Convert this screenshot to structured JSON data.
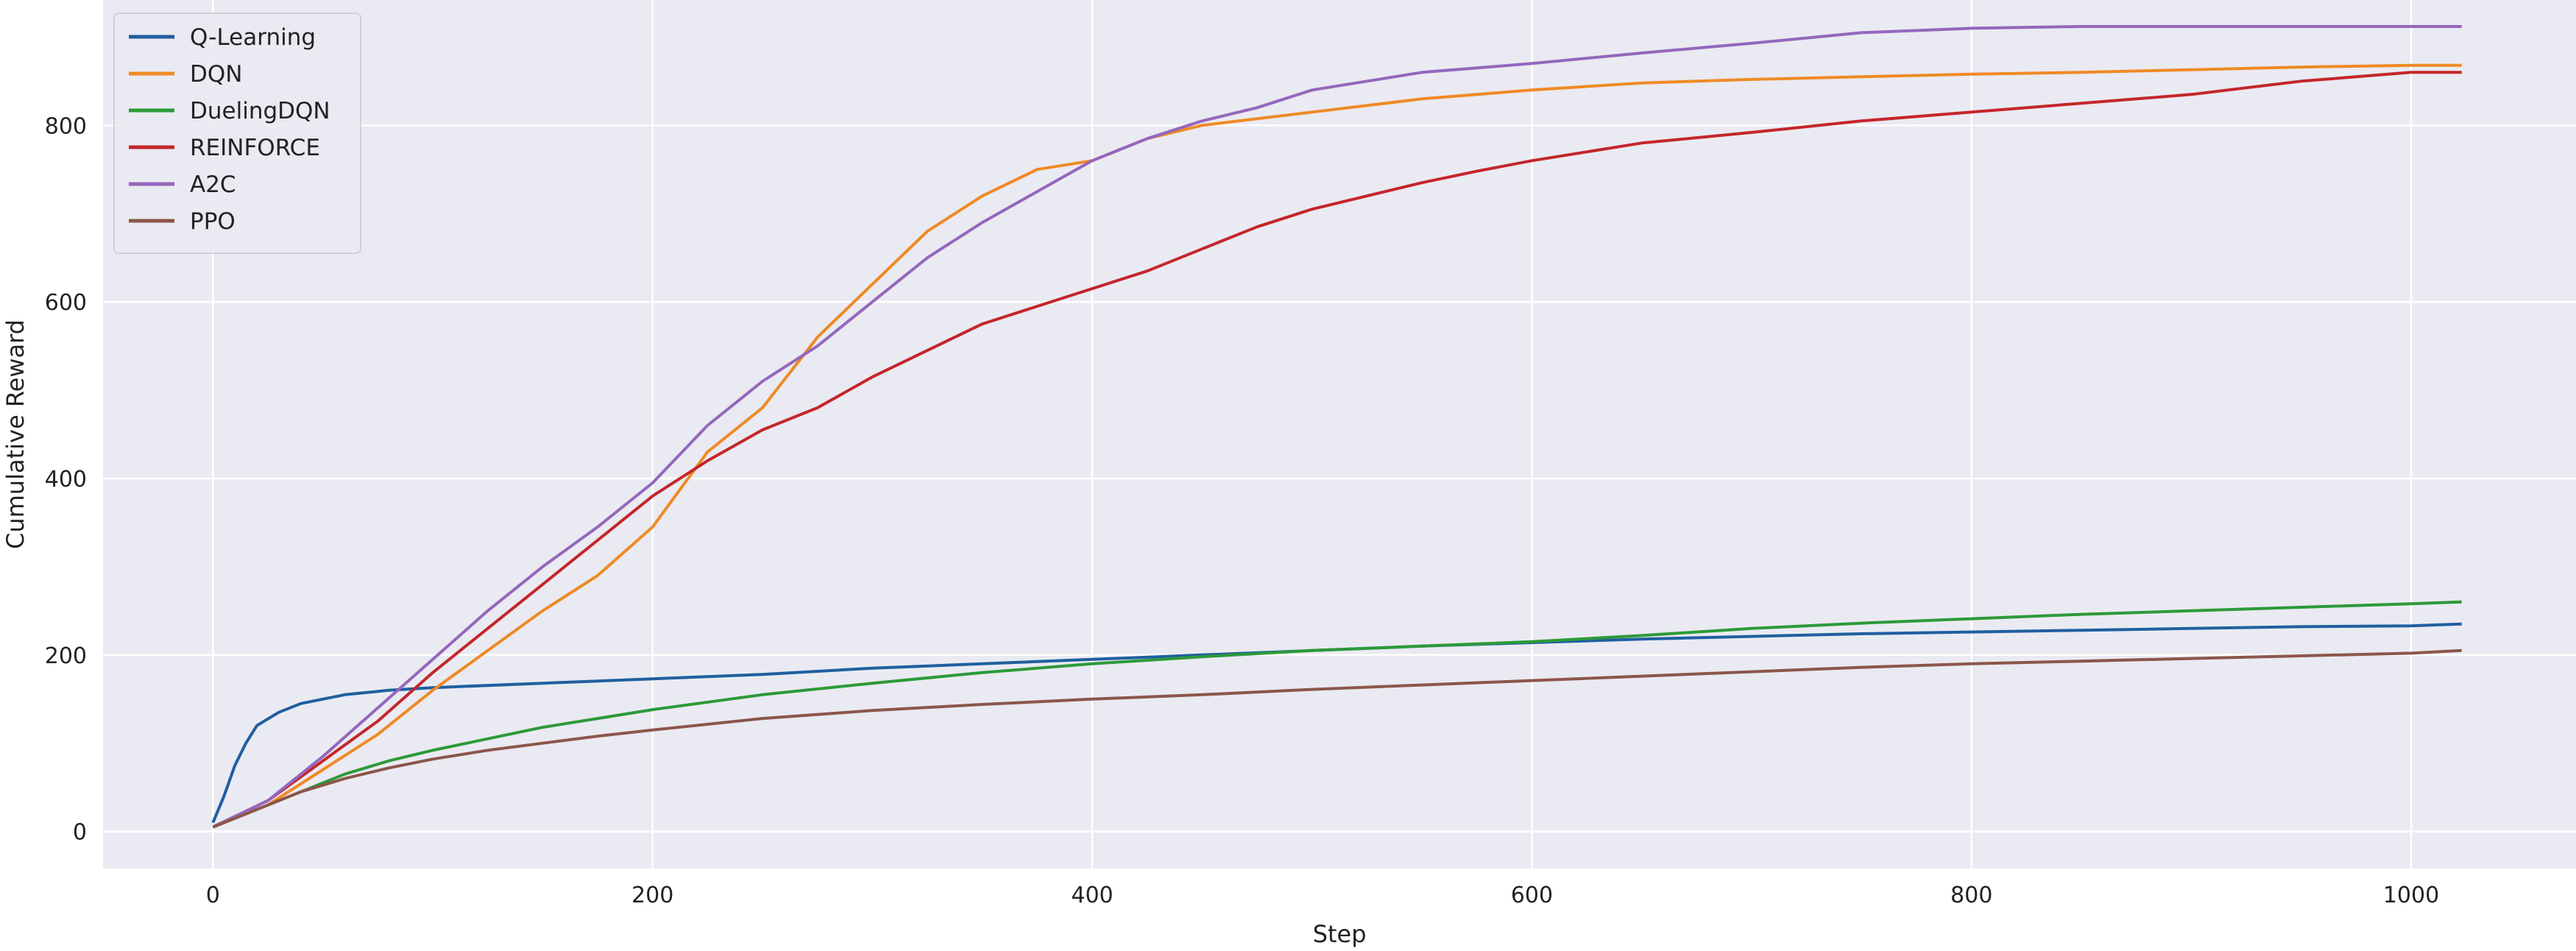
{
  "chart_data": {
    "type": "line",
    "title": "",
    "xlabel": "Step",
    "ylabel": "Cumulative Reward",
    "xlim": [
      -50,
      1075
    ],
    "ylim": [
      -42,
      942
    ],
    "xticks": [
      0,
      200,
      400,
      600,
      800,
      1000
    ],
    "yticks": [
      0,
      200,
      400,
      600,
      800
    ],
    "grid": true,
    "legend_position": "upper-left",
    "background_color": "#eaeaf2",
    "series": [
      {
        "name": "Q-Learning",
        "color": "#1f5fa0",
        "points": [
          [
            0,
            10
          ],
          [
            5,
            40
          ],
          [
            10,
            75
          ],
          [
            15,
            100
          ],
          [
            20,
            120
          ],
          [
            30,
            135
          ],
          [
            40,
            145
          ],
          [
            60,
            155
          ],
          [
            80,
            160
          ],
          [
            100,
            163
          ],
          [
            150,
            168
          ],
          [
            200,
            173
          ],
          [
            250,
            178
          ],
          [
            300,
            185
          ],
          [
            350,
            190
          ],
          [
            400,
            195
          ],
          [
            450,
            200
          ],
          [
            500,
            205
          ],
          [
            550,
            210
          ],
          [
            600,
            214
          ],
          [
            650,
            218
          ],
          [
            700,
            221
          ],
          [
            750,
            224
          ],
          [
            800,
            226
          ],
          [
            850,
            228
          ],
          [
            900,
            230
          ],
          [
            950,
            232
          ],
          [
            1000,
            233
          ],
          [
            1023,
            235
          ]
        ]
      },
      {
        "name": "DQN",
        "color": "#ef8a24",
        "points": [
          [
            0,
            5
          ],
          [
            25,
            30
          ],
          [
            50,
            70
          ],
          [
            75,
            110
          ],
          [
            100,
            160
          ],
          [
            125,
            205
          ],
          [
            150,
            250
          ],
          [
            175,
            290
          ],
          [
            200,
            345
          ],
          [
            225,
            430
          ],
          [
            250,
            480
          ],
          [
            275,
            560
          ],
          [
            300,
            620
          ],
          [
            325,
            680
          ],
          [
            350,
            720
          ],
          [
            375,
            750
          ],
          [
            400,
            760
          ],
          [
            425,
            785
          ],
          [
            450,
            800
          ],
          [
            500,
            815
          ],
          [
            550,
            830
          ],
          [
            600,
            840
          ],
          [
            650,
            848
          ],
          [
            700,
            852
          ],
          [
            750,
            855
          ],
          [
            800,
            858
          ],
          [
            850,
            860
          ],
          [
            900,
            863
          ],
          [
            950,
            866
          ],
          [
            1000,
            868
          ],
          [
            1023,
            868
          ]
        ]
      },
      {
        "name": "DuelingDQN",
        "color": "#2c9a38",
        "points": [
          [
            0,
            5
          ],
          [
            20,
            25
          ],
          [
            40,
            45
          ],
          [
            60,
            65
          ],
          [
            80,
            80
          ],
          [
            100,
            92
          ],
          [
            125,
            105
          ],
          [
            150,
            118
          ],
          [
            175,
            128
          ],
          [
            200,
            138
          ],
          [
            250,
            155
          ],
          [
            300,
            168
          ],
          [
            350,
            180
          ],
          [
            400,
            190
          ],
          [
            450,
            198
          ],
          [
            500,
            205
          ],
          [
            550,
            210
          ],
          [
            600,
            215
          ],
          [
            650,
            222
          ],
          [
            700,
            230
          ],
          [
            750,
            236
          ],
          [
            800,
            241
          ],
          [
            850,
            246
          ],
          [
            900,
            250
          ],
          [
            950,
            254
          ],
          [
            1000,
            258
          ],
          [
            1023,
            260
          ]
        ]
      },
      {
        "name": "REINFORCE",
        "color": "#c4262b",
        "points": [
          [
            0,
            5
          ],
          [
            25,
            35
          ],
          [
            50,
            80
          ],
          [
            75,
            125
          ],
          [
            100,
            180
          ],
          [
            125,
            230
          ],
          [
            150,
            280
          ],
          [
            175,
            330
          ],
          [
            200,
            380
          ],
          [
            225,
            420
          ],
          [
            250,
            455
          ],
          [
            275,
            480
          ],
          [
            300,
            515
          ],
          [
            325,
            545
          ],
          [
            350,
            575
          ],
          [
            375,
            595
          ],
          [
            400,
            615
          ],
          [
            425,
            635
          ],
          [
            450,
            660
          ],
          [
            475,
            685
          ],
          [
            500,
            705
          ],
          [
            525,
            720
          ],
          [
            550,
            735
          ],
          [
            575,
            748
          ],
          [
            600,
            760
          ],
          [
            625,
            770
          ],
          [
            650,
            780
          ],
          [
            700,
            792
          ],
          [
            750,
            805
          ],
          [
            800,
            815
          ],
          [
            850,
            825
          ],
          [
            900,
            835
          ],
          [
            950,
            850
          ],
          [
            1000,
            860
          ],
          [
            1023,
            860
          ]
        ]
      },
      {
        "name": "A2C",
        "color": "#9467bd",
        "points": [
          [
            0,
            5
          ],
          [
            25,
            35
          ],
          [
            50,
            85
          ],
          [
            75,
            140
          ],
          [
            100,
            195
          ],
          [
            125,
            250
          ],
          [
            150,
            300
          ],
          [
            175,
            345
          ],
          [
            200,
            395
          ],
          [
            225,
            460
          ],
          [
            250,
            510
          ],
          [
            275,
            550
          ],
          [
            300,
            600
          ],
          [
            325,
            650
          ],
          [
            350,
            690
          ],
          [
            375,
            725
          ],
          [
            400,
            760
          ],
          [
            425,
            785
          ],
          [
            450,
            805
          ],
          [
            475,
            820
          ],
          [
            500,
            840
          ],
          [
            550,
            860
          ],
          [
            600,
            870
          ],
          [
            650,
            882
          ],
          [
            700,
            893
          ],
          [
            750,
            905
          ],
          [
            800,
            910
          ],
          [
            850,
            912
          ],
          [
            900,
            912
          ],
          [
            950,
            912
          ],
          [
            1000,
            912
          ],
          [
            1023,
            912
          ]
        ]
      },
      {
        "name": "PPO",
        "color": "#8c564b",
        "points": [
          [
            0,
            5
          ],
          [
            20,
            25
          ],
          [
            40,
            45
          ],
          [
            60,
            60
          ],
          [
            80,
            72
          ],
          [
            100,
            82
          ],
          [
            125,
            92
          ],
          [
            150,
            100
          ],
          [
            175,
            108
          ],
          [
            200,
            115
          ],
          [
            250,
            128
          ],
          [
            300,
            137
          ],
          [
            350,
            144
          ],
          [
            400,
            150
          ],
          [
            450,
            155
          ],
          [
            500,
            161
          ],
          [
            550,
            166
          ],
          [
            600,
            171
          ],
          [
            650,
            176
          ],
          [
            700,
            181
          ],
          [
            750,
            186
          ],
          [
            800,
            190
          ],
          [
            850,
            193
          ],
          [
            900,
            196
          ],
          [
            950,
            199
          ],
          [
            1000,
            202
          ],
          [
            1023,
            205
          ]
        ]
      }
    ]
  }
}
